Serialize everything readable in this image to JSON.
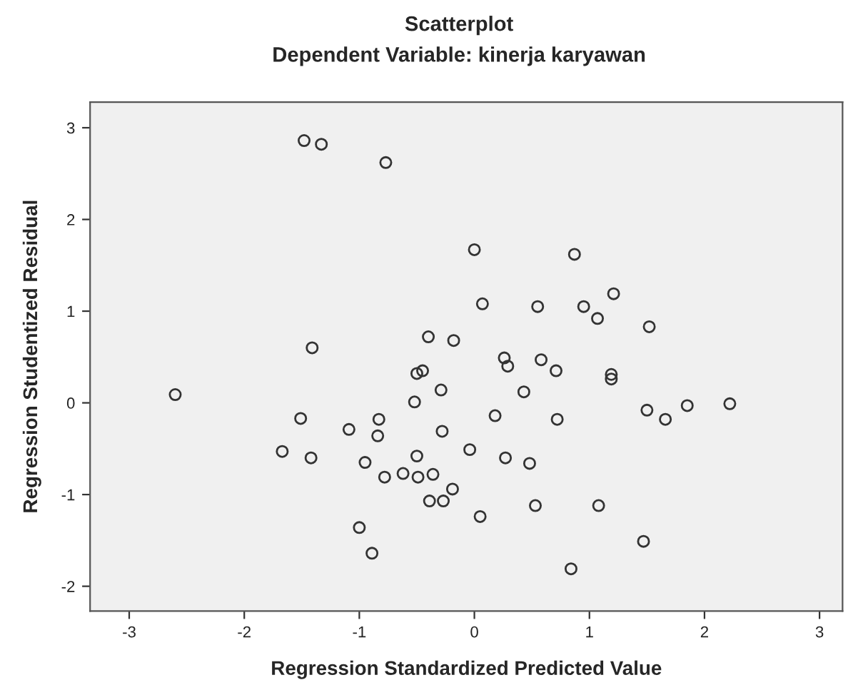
{
  "chart_data": {
    "type": "scatter",
    "title": "Scatterplot",
    "subtitle": "Dependent Variable: kinerja karyawan",
    "xlabel": "Regression Standardized Predicted Value",
    "ylabel": "Regression Studentized Residual",
    "series": [
      {
        "color": "#333333",
        "x": [
          -1.48,
          -1.33,
          -0.77,
          0.0,
          0.87,
          0.07,
          0.55,
          0.95,
          1.21,
          1.07,
          1.52,
          -0.4,
          -0.18,
          0.26,
          0.29,
          0.58,
          0.71,
          1.19,
          1.19,
          -0.5,
          -0.45,
          -0.29,
          0.43,
          0.18,
          0.72,
          1.5,
          1.66,
          1.85,
          2.22,
          -0.28,
          -0.04,
          0.27,
          0.48,
          -0.36,
          -0.19,
          -0.39,
          -0.27,
          0.05,
          0.53,
          1.08,
          1.47,
          0.84,
          -2.6,
          -1.41,
          -1.51,
          -1.67,
          -1.42,
          -1.09,
          -0.83,
          -0.84,
          -0.95,
          -0.78,
          -0.62,
          -0.49,
          -0.5,
          -0.52,
          -1.0,
          -0.89
        ],
        "values": [
          2.86,
          2.82,
          2.62,
          1.67,
          1.62,
          1.08,
          1.05,
          1.05,
          1.19,
          0.92,
          0.83,
          0.72,
          0.68,
          0.49,
          0.4,
          0.47,
          0.35,
          0.31,
          0.26,
          0.32,
          0.35,
          0.14,
          0.12,
          -0.14,
          -0.18,
          -0.08,
          -0.18,
          -0.03,
          -0.01,
          -0.31,
          -0.51,
          -0.6,
          -0.66,
          -0.78,
          -0.94,
          -1.07,
          -1.07,
          -1.24,
          -1.12,
          -1.12,
          -1.51,
          -1.81,
          0.09,
          0.6,
          -0.17,
          -0.53,
          -0.6,
          -0.29,
          -0.18,
          -0.36,
          -0.65,
          -0.81,
          -0.77,
          -0.81,
          -0.58,
          0.01,
          -1.36,
          -1.64
        ]
      }
    ],
    "marker": "circle",
    "xlim": [
      -3.34,
      3.2
    ],
    "ylim": [
      -2.27,
      3.28
    ],
    "xticks": [
      -3,
      -2,
      -1,
      0,
      1,
      2,
      3
    ],
    "yticks": [
      -2,
      -1,
      0,
      1,
      2,
      3
    ],
    "grid": false
  }
}
